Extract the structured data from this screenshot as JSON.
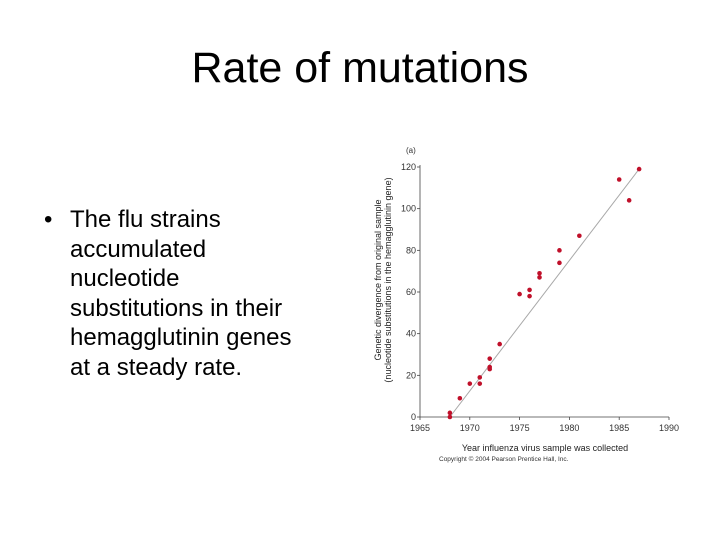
{
  "slide": {
    "title": "Rate of mutations",
    "bullet_symbol": "•",
    "bullet_lines": [
      "The flu strains",
      "accumulated",
      "nucleotide",
      "substitutions in their",
      "hemagglutinin genes",
      "at a steady rate."
    ]
  },
  "chart_data": {
    "type": "scatter",
    "panel_label": "(a)",
    "xlabel": "Year influenza virus sample was collected",
    "ylabel_lines": [
      "Genetic divergence from original sample",
      "(nucleotide substitutions in the hemagglutinin gene)"
    ],
    "xlim": [
      1965,
      1990
    ],
    "ylim": [
      0,
      120
    ],
    "x_ticks": [
      "1965",
      "1970",
      "1975",
      "1980",
      "1985",
      "1990"
    ],
    "y_ticks": [
      "0",
      "20",
      "40",
      "60",
      "80",
      "100",
      "120"
    ],
    "points": [
      {
        "x": 1968.0,
        "y": 0
      },
      {
        "x": 1968.0,
        "y": 2
      },
      {
        "x": 1969.0,
        "y": 9
      },
      {
        "x": 1970.0,
        "y": 16
      },
      {
        "x": 1971.0,
        "y": 16
      },
      {
        "x": 1971.0,
        "y": 19
      },
      {
        "x": 1972.0,
        "y": 23
      },
      {
        "x": 1972.0,
        "y": 24
      },
      {
        "x": 1972.0,
        "y": 28
      },
      {
        "x": 1973.0,
        "y": 35
      },
      {
        "x": 1975.0,
        "y": 59
      },
      {
        "x": 1976.0,
        "y": 58
      },
      {
        "x": 1976.0,
        "y": 61
      },
      {
        "x": 1977.0,
        "y": 67
      },
      {
        "x": 1977.0,
        "y": 69
      },
      {
        "x": 1979.0,
        "y": 74
      },
      {
        "x": 1979.0,
        "y": 80
      },
      {
        "x": 1981.0,
        "y": 87
      },
      {
        "x": 1985.0,
        "y": 114
      },
      {
        "x": 1986.0,
        "y": 104
      },
      {
        "x": 1987.0,
        "y": 119
      }
    ],
    "trend_line": {
      "x": [
        1968,
        1987
      ],
      "y": [
        0,
        119
      ]
    },
    "point_color": "#c0102a",
    "line_color": "#a8a8a8",
    "copyright": "Copyright © 2004 Pearson Prentice Hall, Inc."
  }
}
